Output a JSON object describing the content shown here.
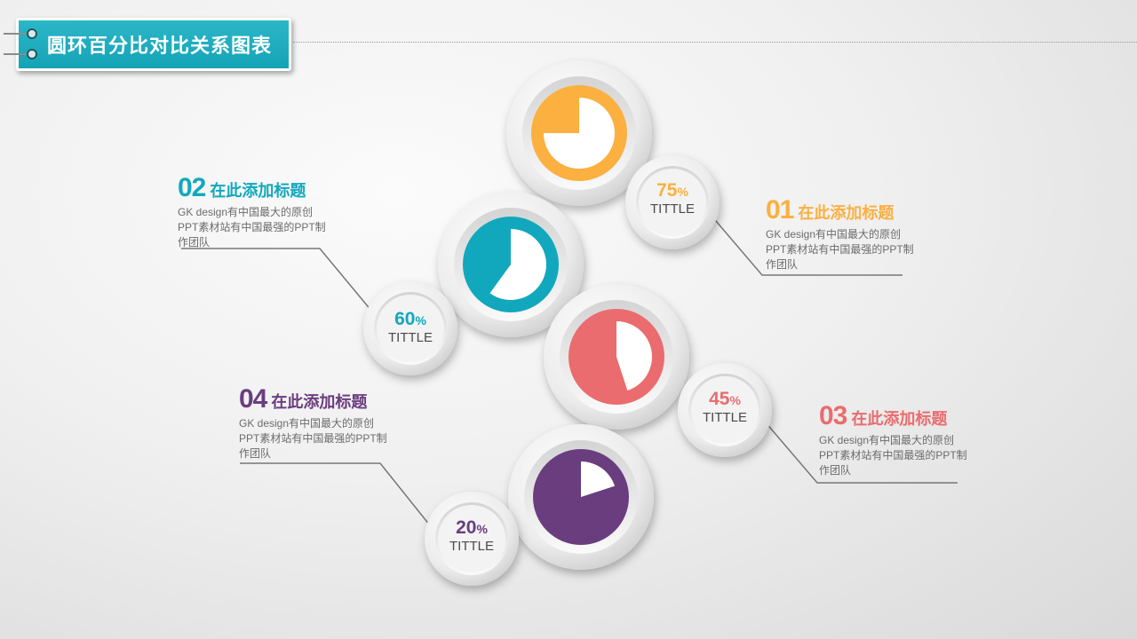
{
  "header": {
    "title": "圆环百分比对比关系图表"
  },
  "items": [
    {
      "number": "01",
      "title": "在此添加标题",
      "description": "GK design有中国最大的原创PPT素材站有中国最强的PPT制作团队",
      "percent": 75,
      "percent_label": "75",
      "percent_sign": "%",
      "tag": "TITTLE",
      "color": "#fbb040"
    },
    {
      "number": "02",
      "title": "在此添加标题",
      "description": "GK design有中国最大的原创PPT素材站有中国最强的PPT制作团队",
      "percent": 60,
      "percent_label": "60",
      "percent_sign": "%",
      "tag": "TITTLE",
      "color": "#11a8bd"
    },
    {
      "number": "03",
      "title": "在此添加标题",
      "description": "GK design有中国最大的原创PPT素材站有中国最强的PPT制作团队",
      "percent": 45,
      "percent_label": "45",
      "percent_sign": "%",
      "tag": "TITTLE",
      "color": "#ea6c6e"
    },
    {
      "number": "04",
      "title": "在此添加标题",
      "description": "GK design有中国最大的原创PPT素材站有中国最强的PPT制作团队",
      "percent": 20,
      "percent_label": "20",
      "percent_sign": "%",
      "tag": "TITTLE",
      "color": "#6a3d7f"
    }
  ]
}
